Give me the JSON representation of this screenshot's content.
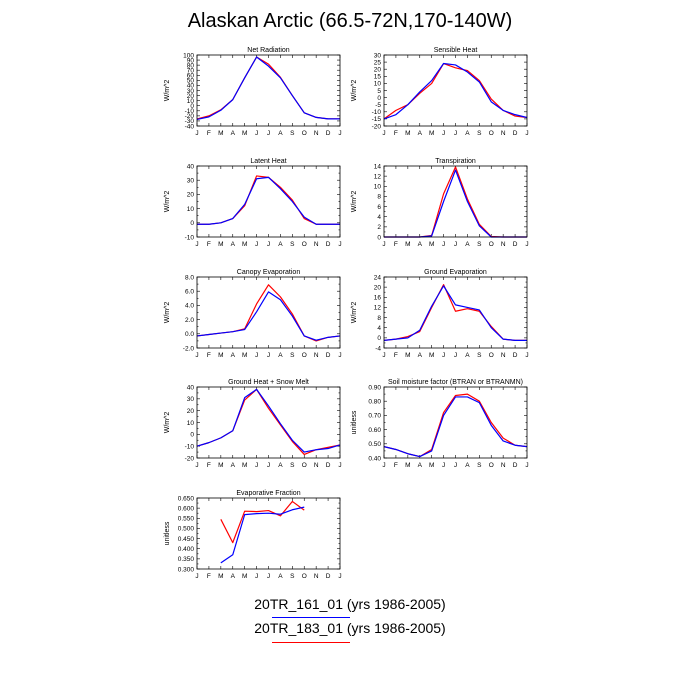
{
  "title": "Alaskan Arctic (66.5-72N,170-140W)",
  "legend": [
    {
      "text": "20TR_161_01 (yrs 1986-2005)",
      "color": "#0000ff"
    },
    {
      "text": "20TR_183_01 (yrs 1986-2005)",
      "color": "#ff0000"
    }
  ],
  "chart_data": [
    {
      "type": "line",
      "title": "Net Radiation",
      "ylabel": "W/m^2",
      "categories": [
        "J",
        "F",
        "M",
        "A",
        "M",
        "J",
        "J",
        "A",
        "S",
        "O",
        "N",
        "D",
        "J"
      ],
      "ylim": [
        -40,
        100
      ],
      "yticks": [
        -40,
        -30,
        -20,
        -10,
        0,
        10,
        20,
        30,
        40,
        50,
        60,
        70,
        80,
        90,
        100
      ],
      "yticklabels": [
        "-40",
        "-30",
        "-20",
        "-10",
        "0",
        "10",
        "20",
        "30",
        "40",
        "50",
        "60",
        "70",
        "80",
        "90",
        "100"
      ],
      "series": [
        {
          "color": "#ff0000",
          "values": [
            -26,
            -20,
            -8,
            12,
            55,
            96,
            82,
            56,
            20,
            -14,
            -23,
            -26,
            -26
          ]
        },
        {
          "color": "#0000ff",
          "values": [
            -27,
            -22,
            -9,
            12,
            55,
            96,
            78,
            55,
            20,
            -14,
            -23,
            -26,
            -26
          ]
        }
      ]
    },
    {
      "type": "line",
      "title": "Sensible Heat",
      "ylabel": "W/m^2",
      "categories": [
        "J",
        "F",
        "M",
        "A",
        "M",
        "J",
        "J",
        "A",
        "S",
        "O",
        "N",
        "D",
        "J"
      ],
      "ylim": [
        -20,
        30
      ],
      "yticks": [
        -20,
        -15,
        -10,
        -5,
        0,
        5,
        10,
        15,
        20,
        25,
        30
      ],
      "yticklabels": [
        "-20",
        "-15",
        "-10",
        "-5",
        "0",
        "5",
        "10",
        "15",
        "20",
        "25",
        "30"
      ],
      "series": [
        {
          "color": "#ff0000",
          "values": [
            -15,
            -9,
            -5,
            3,
            10,
            24,
            21,
            19,
            12,
            -1,
            -9,
            -13,
            -14
          ]
        },
        {
          "color": "#0000ff",
          "values": [
            -15,
            -12,
            -5,
            4,
            12,
            24,
            23,
            18,
            11,
            -3,
            -9,
            -12,
            -14
          ]
        }
      ]
    },
    {
      "type": "line",
      "title": "Latent Heat",
      "ylabel": "W/m^2",
      "categories": [
        "J",
        "F",
        "M",
        "A",
        "M",
        "J",
        "J",
        "A",
        "S",
        "O",
        "N",
        "D",
        "J"
      ],
      "ylim": [
        -10,
        40
      ],
      "yticks": [
        -10,
        -5,
        0,
        5,
        10,
        15,
        20,
        25,
        30,
        35,
        40
      ],
      "yticklabels": [
        "-10",
        "",
        "0",
        "",
        "10",
        "",
        "20",
        "",
        "30",
        "",
        "40"
      ],
      "series": [
        {
          "color": "#ff0000",
          "values": [
            -1,
            -1,
            0,
            3,
            12,
            33,
            32,
            25,
            16,
            3,
            -1,
            -1,
            -1
          ]
        },
        {
          "color": "#0000ff",
          "values": [
            -1,
            -1,
            0,
            3,
            13,
            31,
            32,
            24,
            15,
            4,
            -1,
            -1,
            -1
          ]
        }
      ]
    },
    {
      "type": "line",
      "title": "Transpiration",
      "ylabel": "W/m^2",
      "categories": [
        "J",
        "F",
        "M",
        "A",
        "M",
        "J",
        "J",
        "A",
        "S",
        "O",
        "N",
        "D",
        "J"
      ],
      "ylim": [
        0,
        14
      ],
      "yticks": [
        0,
        1,
        2,
        3,
        4,
        5,
        6,
        7,
        8,
        9,
        10,
        11,
        12,
        13,
        14
      ],
      "yticklabels": [
        "0",
        "",
        "2",
        "",
        "4",
        "",
        "6",
        "",
        "8",
        "",
        "10",
        "",
        "12",
        "",
        "14"
      ],
      "series": [
        {
          "color": "#ff0000",
          "values": [
            0,
            0,
            0,
            0,
            0.3,
            8.5,
            13.8,
            7.5,
            2.5,
            0.1,
            0,
            0,
            0
          ]
        },
        {
          "color": "#0000ff",
          "values": [
            0,
            0,
            0,
            0,
            0.2,
            7,
            13.2,
            7,
            2.2,
            0,
            0,
            0,
            0
          ]
        }
      ]
    },
    {
      "type": "line",
      "title": "Canopy Evaporation",
      "ylabel": "W/m^2",
      "categories": [
        "J",
        "F",
        "M",
        "A",
        "M",
        "J",
        "J",
        "A",
        "S",
        "O",
        "N",
        "D",
        "J"
      ],
      "ylim": [
        -2,
        8
      ],
      "yticks": [
        -2,
        -1,
        0,
        1,
        2,
        3,
        4,
        5,
        6,
        7,
        8
      ],
      "yticklabels": [
        "-2.0",
        "",
        "0.0",
        "",
        "2.0",
        "",
        "4.0",
        "",
        "6.0",
        "",
        "8.0"
      ],
      "series": [
        {
          "color": "#ff0000",
          "values": [
            -0.3,
            -0.1,
            0.1,
            0.3,
            0.7,
            4.2,
            6.9,
            5.2,
            2.8,
            -0.3,
            -1,
            -0.5,
            -0.3
          ]
        },
        {
          "color": "#0000ff",
          "values": [
            -0.3,
            -0.1,
            0.1,
            0.3,
            0.6,
            3.1,
            5.9,
            4.8,
            2.5,
            -0.3,
            -0.9,
            -0.5,
            -0.3
          ]
        }
      ]
    },
    {
      "type": "line",
      "title": "Ground Evaporation",
      "ylabel": "W/m^2",
      "categories": [
        "J",
        "F",
        "M",
        "A",
        "M",
        "J",
        "J",
        "A",
        "S",
        "O",
        "N",
        "D",
        "J"
      ],
      "ylim": [
        -4,
        24
      ],
      "yticks": [
        -4,
        -2,
        0,
        2,
        4,
        6,
        8,
        10,
        12,
        14,
        16,
        18,
        20,
        22,
        24
      ],
      "yticklabels": [
        "-4",
        "",
        "0",
        "",
        "4",
        "",
        "8",
        "",
        "12",
        "",
        "16",
        "",
        "20",
        "",
        "24"
      ],
      "series": [
        {
          "color": "#ff0000",
          "values": [
            -1,
            -0.5,
            0.5,
            2.5,
            12,
            21,
            10.5,
            11.5,
            10.5,
            4.5,
            -0.5,
            -1,
            -1
          ]
        },
        {
          "color": "#0000ff",
          "values": [
            -1,
            -0.5,
            0,
            3,
            12.5,
            20.5,
            13,
            12,
            11,
            4,
            -0.5,
            -1,
            -1
          ]
        }
      ]
    },
    {
      "type": "line",
      "title": "Ground Heat + Snow Melt",
      "ylabel": "W/m^2",
      "categories": [
        "J",
        "F",
        "M",
        "A",
        "M",
        "J",
        "J",
        "A",
        "S",
        "O",
        "N",
        "D",
        "J"
      ],
      "ylim": [
        -20,
        40
      ],
      "yticks": [
        -20,
        -15,
        -10,
        -5,
        0,
        5,
        10,
        15,
        20,
        25,
        30,
        35,
        40
      ],
      "yticklabels": [
        "-20",
        "",
        "-10",
        "",
        "0",
        "",
        "10",
        "",
        "20",
        "",
        "30",
        "",
        "40"
      ],
      "series": [
        {
          "color": "#ff0000",
          "values": [
            -10,
            -7,
            -3,
            3,
            29,
            38,
            22,
            8,
            -6,
            -17,
            -13,
            -11,
            -9
          ]
        },
        {
          "color": "#0000ff",
          "values": [
            -10,
            -7,
            -3,
            3,
            31,
            38,
            24,
            9,
            -5,
            -15,
            -13,
            -12,
            -9
          ]
        }
      ]
    },
    {
      "type": "line",
      "title": "Soil moisture factor (BTRAN or BTRANMN)",
      "ylabel": "unitless",
      "categories": [
        "J",
        "F",
        "M",
        "A",
        "M",
        "J",
        "J",
        "A",
        "S",
        "O",
        "N",
        "D",
        "J"
      ],
      "ylim": [
        0.4,
        0.9
      ],
      "yticks": [
        0.4,
        0.45,
        0.5,
        0.55,
        0.6,
        0.65,
        0.7,
        0.75,
        0.8,
        0.85,
        0.9
      ],
      "yticklabels": [
        "0.40",
        "",
        "0.50",
        "",
        "0.60",
        "",
        "0.70",
        "",
        "0.80",
        "",
        "0.90"
      ],
      "series": [
        {
          "color": "#ff0000",
          "values": [
            0.48,
            0.46,
            0.43,
            0.41,
            0.46,
            0.72,
            0.84,
            0.85,
            0.8,
            0.65,
            0.54,
            0.49,
            0.48
          ]
        },
        {
          "color": "#0000ff",
          "values": [
            0.48,
            0.46,
            0.43,
            0.41,
            0.45,
            0.7,
            0.83,
            0.83,
            0.79,
            0.63,
            0.52,
            0.49,
            0.48
          ]
        }
      ]
    },
    {
      "type": "line",
      "title": "Evaporative Fraction",
      "ylabel": "unitless",
      "categories": [
        "J",
        "F",
        "M",
        "A",
        "M",
        "J",
        "J",
        "A",
        "S",
        "O",
        "N",
        "D",
        "J"
      ],
      "ylim": [
        0.3,
        0.65
      ],
      "yticks": [
        0.3,
        0.325,
        0.35,
        0.375,
        0.4,
        0.425,
        0.45,
        0.475,
        0.5,
        0.525,
        0.55,
        0.575,
        0.6,
        0.625,
        0.65
      ],
      "yticklabels": [
        "0.300",
        "",
        "0.350",
        "",
        "0.400",
        "",
        "0.450",
        "",
        "0.500",
        "",
        "0.550",
        "",
        "0.600",
        "",
        "0.650"
      ],
      "series": [
        {
          "color": "#ff0000",
          "values": [
            null,
            null,
            0.545,
            0.43,
            0.585,
            0.583,
            0.588,
            0.562,
            0.633,
            0.59,
            null,
            null,
            null
          ]
        },
        {
          "color": "#0000ff",
          "values": [
            null,
            null,
            0.33,
            0.37,
            0.568,
            0.573,
            0.575,
            0.57,
            0.592,
            0.605,
            null,
            null,
            null
          ]
        }
      ]
    }
  ]
}
